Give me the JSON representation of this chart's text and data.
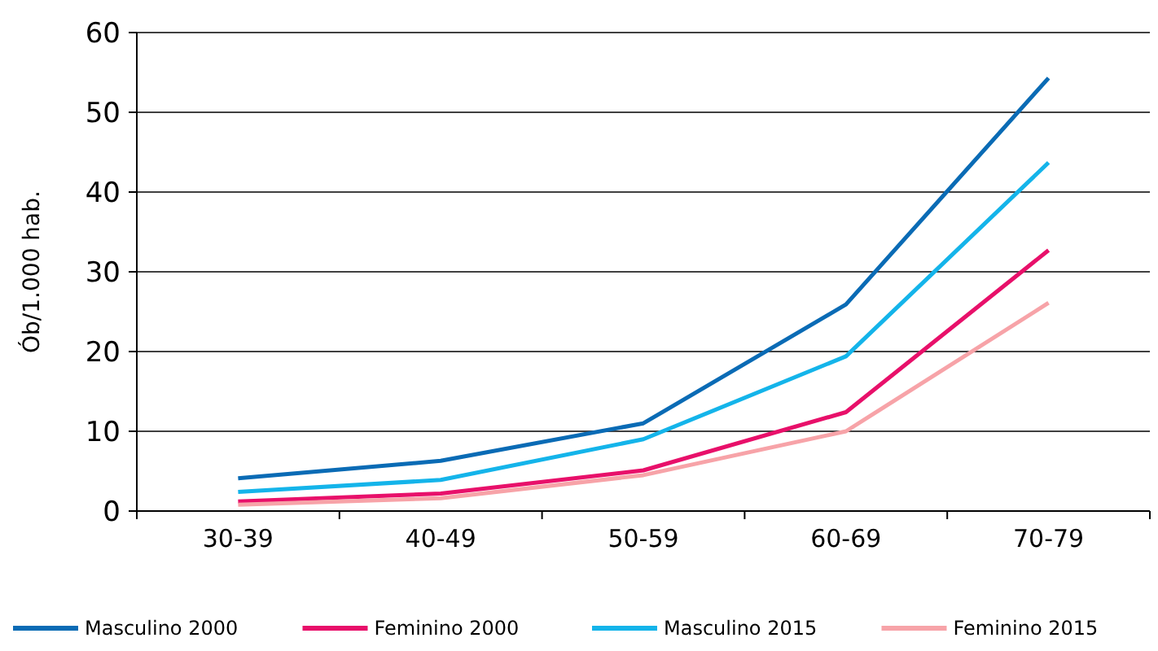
{
  "chart_data": {
    "type": "line",
    "ylabel": "Ób/1.000 hab.",
    "categories": [
      "30-39",
      "40-49",
      "50-59",
      "60-69",
      "70-79"
    ],
    "series": [
      {
        "name": "Masculino 2000",
        "color": "#0a6bb5",
        "values": [
          4.1,
          6.3,
          11.0,
          25.9,
          54.3
        ]
      },
      {
        "name": "Feminino 2000",
        "color": "#e8106a",
        "values": [
          1.2,
          2.2,
          5.1,
          12.4,
          32.7
        ]
      },
      {
        "name": "Masculino 2015",
        "color": "#14b4ea",
        "values": [
          2.4,
          3.9,
          9.0,
          19.4,
          43.7
        ]
      },
      {
        "name": "Feminino 2015",
        "color": "#f7a3a8",
        "values": [
          0.8,
          1.6,
          4.5,
          10.0,
          26.1
        ]
      }
    ],
    "ylim": [
      0,
      60
    ],
    "yticks": [
      0,
      10,
      20,
      30,
      40,
      50,
      60
    ],
    "grid": "y",
    "legend": "bottom",
    "marker": "none",
    "line_style": "solid"
  }
}
